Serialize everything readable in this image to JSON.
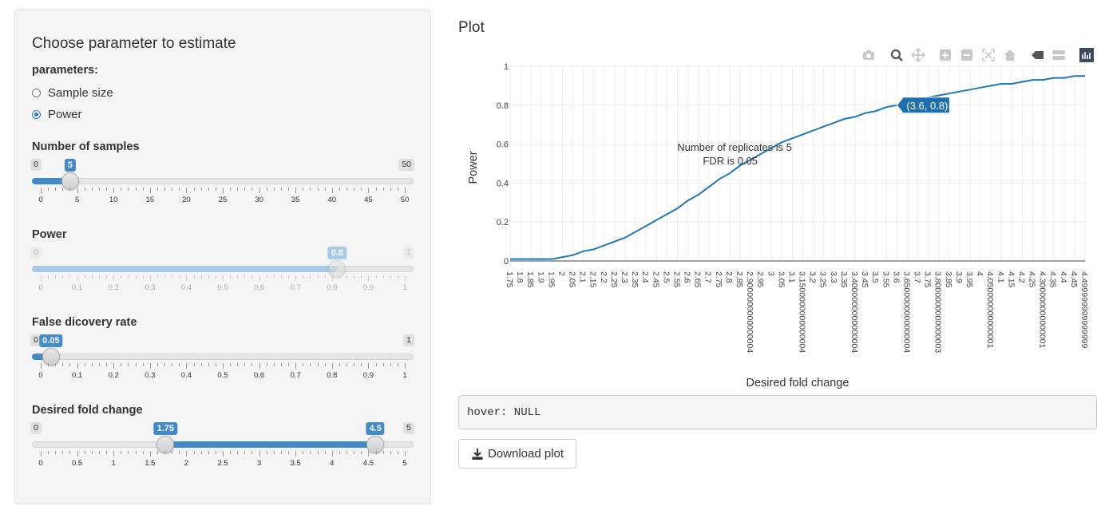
{
  "sidebar": {
    "title": "Choose parameter to estimate",
    "parameters_label": "parameters:",
    "options": [
      {
        "label": "Sample size",
        "checked": false
      },
      {
        "label": "Power",
        "checked": true
      }
    ],
    "sliders": [
      {
        "label": "Number of samples",
        "min_label": "0",
        "max_label": "50",
        "min": 0,
        "max": 50,
        "value": 5,
        "value_label": "5",
        "enabled": true,
        "ticks": [
          "0",
          "5",
          "10",
          "15",
          "20",
          "25",
          "30",
          "35",
          "40",
          "45",
          "50"
        ]
      },
      {
        "label": "Power",
        "min_label": "0",
        "max_label": "1",
        "min": 0,
        "max": 1,
        "value": 0.8,
        "value_label": "0.8",
        "enabled": false,
        "ticks": [
          "0",
          "0.1",
          "0.2",
          "0.3",
          "0.4",
          "0.5",
          "0.6",
          "0.7",
          "0.8",
          "0.9",
          "1"
        ]
      },
      {
        "label": "False dicovery rate",
        "min_label": "0",
        "max_label": "1",
        "min": 0,
        "max": 1,
        "value": 0.05,
        "value_label": "0.05",
        "enabled": true,
        "ticks": [
          "0",
          "0.1",
          "0.2",
          "0.3",
          "0.4",
          "0.5",
          "0.6",
          "0.7",
          "0.8",
          "0.9",
          "1"
        ]
      },
      {
        "label": "Desired fold change",
        "min_label": "0",
        "max_label": "5",
        "min": 0,
        "max": 5,
        "range": [
          1.75,
          4.5
        ],
        "range_labels": [
          "1.75",
          "4.5"
        ],
        "enabled": true,
        "ticks": [
          "0",
          "0.5",
          "1",
          "1.5",
          "2",
          "2.5",
          "3",
          "3.5",
          "4",
          "4.5",
          "5"
        ]
      }
    ]
  },
  "plot": {
    "header": "Plot",
    "hover_text": "hover: NULL",
    "download_label": "Download plot",
    "modebar_icons": [
      "camera-icon",
      "zoom-icon",
      "pan-icon",
      "zoom-in-icon",
      "zoom-out-icon",
      "autoscale-icon",
      "home-icon",
      "hover-closest-icon",
      "hover-compare-icon",
      "plotly-logo-icon"
    ]
  },
  "chart_data": {
    "type": "line",
    "xlabel": "Desired fold change",
    "ylabel": "Power",
    "ylim": [
      0,
      1
    ],
    "yticks": [
      "0",
      "0.2",
      "0.4",
      "0.6",
      "0.8",
      "1"
    ],
    "xtick_labels": [
      "1.75",
      "1.8",
      "1.85",
      "1.9",
      "1.95",
      "2",
      "2.05",
      "2.1",
      "2.15",
      "2.2",
      "2.25",
      "2.3",
      "2.35",
      "2.4",
      "2.45",
      "2.5",
      "2.55",
      "2.6",
      "2.65",
      "2.7",
      "2.75",
      "2.8",
      "2.85",
      "2.9000000000000004",
      "2.95",
      "3",
      "3.05",
      "3.1",
      "3.1500000000000004",
      "3.2",
      "3.25",
      "3.3",
      "3.35",
      "3.4000000000000004",
      "3.45",
      "3.5",
      "3.55",
      "3.6",
      "3.6500000000000004",
      "3.7",
      "3.75",
      "3.8000000000000003",
      "3.85",
      "3.9",
      "3.95",
      "4",
      "4.050000000000001",
      "4.1",
      "4.15",
      "4.2",
      "4.25",
      "4.300000000000001",
      "4.35",
      "4.4",
      "4.45",
      "4.499999999999999"
    ],
    "annotation": [
      "Number of replicates is 5",
      "FDR is 0.05"
    ],
    "hover_label": "(3.6, 0.8)",
    "grid": true,
    "series": [
      {
        "color": "#1f77b4",
        "x": [
          1.75,
          1.8,
          1.85,
          1.9,
          1.95,
          2.0,
          2.05,
          2.1,
          2.15,
          2.2,
          2.25,
          2.3,
          2.35,
          2.4,
          2.45,
          2.5,
          2.55,
          2.6,
          2.65,
          2.7,
          2.75,
          2.8,
          2.85,
          2.9,
          2.95,
          3.0,
          3.05,
          3.1,
          3.15,
          3.2,
          3.25,
          3.3,
          3.35,
          3.4,
          3.45,
          3.5,
          3.55,
          3.6,
          3.65,
          3.7,
          3.75,
          3.8,
          3.85,
          3.9,
          3.95,
          4.0,
          4.05,
          4.1,
          4.15,
          4.2,
          4.25,
          4.3,
          4.35,
          4.4,
          4.45,
          4.5
        ],
        "y": [
          0.01,
          0.01,
          0.01,
          0.01,
          0.01,
          0.02,
          0.03,
          0.05,
          0.06,
          0.08,
          0.1,
          0.12,
          0.15,
          0.18,
          0.21,
          0.24,
          0.27,
          0.31,
          0.34,
          0.38,
          0.42,
          0.45,
          0.49,
          0.52,
          0.55,
          0.58,
          0.61,
          0.63,
          0.65,
          0.67,
          0.69,
          0.71,
          0.73,
          0.74,
          0.76,
          0.77,
          0.79,
          0.8,
          0.82,
          0.83,
          0.84,
          0.85,
          0.86,
          0.87,
          0.88,
          0.89,
          0.9,
          0.91,
          0.91,
          0.92,
          0.93,
          0.93,
          0.94,
          0.94,
          0.95,
          0.95
        ]
      }
    ]
  }
}
